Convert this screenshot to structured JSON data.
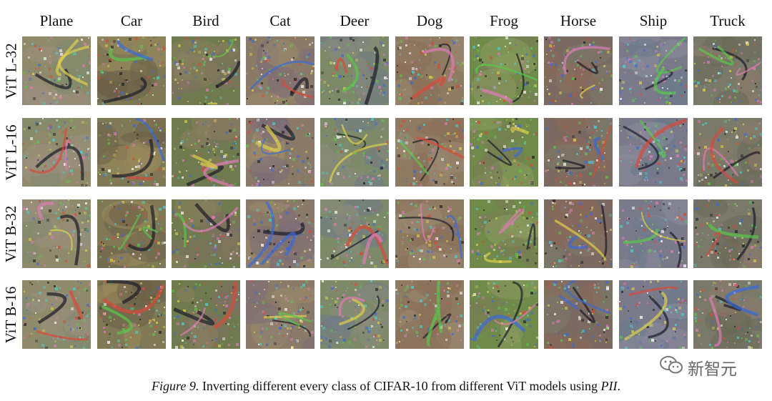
{
  "columns": [
    "Plane",
    "Car",
    "Bird",
    "Cat",
    "Deer",
    "Dog",
    "Frog",
    "Horse",
    "Ship",
    "Truck"
  ],
  "rows": [
    "ViT L-32",
    "ViT L-16",
    "ViT B-32",
    "ViT B-16"
  ],
  "caption": {
    "label": "Figure 9.",
    "text": " Inverting different every class of CIFAR-10 from different ViT models using ",
    "method": "PII",
    "end": "."
  },
  "watermark": {
    "text": "新智元",
    "icon": "wechat-icon"
  },
  "palette": {
    "Plane": [
      "#8f8a6a",
      "#9d8f80",
      "#7e8a70"
    ],
    "Car": [
      "#7f7a55",
      "#6b6048",
      "#9c8a5c"
    ],
    "Bird": [
      "#6f7a4e",
      "#8a8060",
      "#7d6f62"
    ],
    "Cat": [
      "#8a7a68",
      "#7c6c7a",
      "#9a8a6a"
    ],
    "Deer": [
      "#7c8a6a",
      "#8a8a7a",
      "#6f7a86"
    ],
    "Dog": [
      "#8f7a62",
      "#8a7058",
      "#9a8a72"
    ],
    "Frog": [
      "#6f8a4a",
      "#7a7a58",
      "#8a9a60"
    ],
    "Horse": [
      "#7a6a62",
      "#8a6a5a",
      "#7a7a6a"
    ],
    "Ship": [
      "#7a7a8a",
      "#8a8a9a",
      "#6a7a8a"
    ],
    "Truck": [
      "#7a7a6a",
      "#6a6a5a",
      "#8a7a6a"
    ]
  }
}
